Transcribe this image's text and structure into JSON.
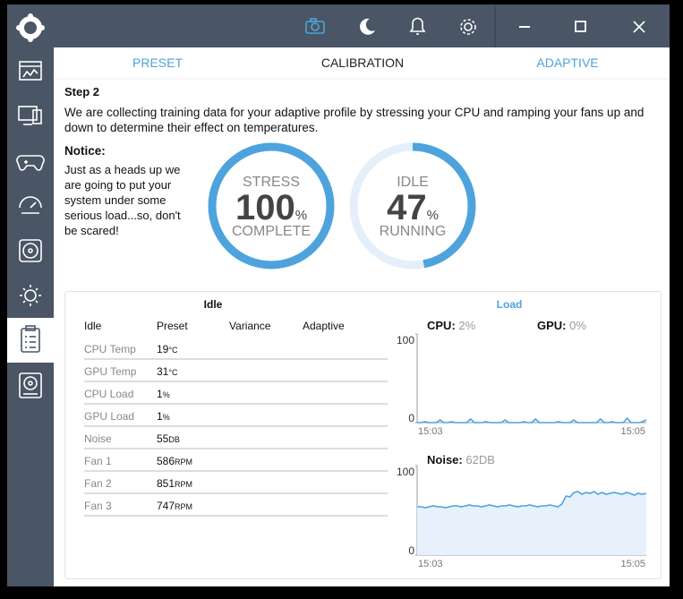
{
  "tabs": [
    "PRESET",
    "CALIBRATION",
    "ADAPTIVE"
  ],
  "active_tab": 1,
  "step": "Step 2",
  "description": "We are collecting training data for your adaptive profile by stressing your CPU and ramping your fans up and down to determine their effect on temperatures.",
  "notice": {
    "title": "Notice:",
    "text": "Just as a heads up we are going to put your system under some serious load...so, don't be scared!"
  },
  "gauges": [
    {
      "top": "STRESS",
      "value": 100,
      "unit": "%",
      "bottom": "COMPLETE"
    },
    {
      "top": "IDLE",
      "value": 47,
      "unit": "%",
      "bottom": "RUNNING"
    }
  ],
  "table": {
    "title": "Idle",
    "columns": [
      "Idle",
      "Preset",
      "Variance",
      "Adaptive"
    ],
    "rows": [
      {
        "name": "CPU Temp",
        "value": 19,
        "unit": "°C"
      },
      {
        "name": "GPU Temp",
        "value": 31,
        "unit": "°C"
      },
      {
        "name": "CPU Load",
        "value": 1,
        "unit": "%"
      },
      {
        "name": "GPU Load",
        "value": 1,
        "unit": "%"
      },
      {
        "name": "Noise",
        "value": 55,
        "unit": "DB"
      },
      {
        "name": "Fan 1",
        "value": 586,
        "unit": "RPM"
      },
      {
        "name": "Fan 2",
        "value": 851,
        "unit": "RPM"
      },
      {
        "name": "Fan 3",
        "value": 747,
        "unit": "RPM"
      }
    ]
  },
  "load": {
    "title": "Load",
    "cpu": {
      "label": "CPU:",
      "value": 2,
      "unit": "%"
    },
    "gpu": {
      "label": "GPU:",
      "value": 0,
      "unit": "%"
    },
    "chart": {
      "type": "line",
      "ylim": [
        0,
        100
      ],
      "yticks": [
        0,
        100
      ],
      "xlabels": [
        "15:03",
        "15:05"
      ],
      "color": "#4ea3dc",
      "values": [
        0,
        0,
        1,
        0,
        0,
        0,
        3,
        0,
        0,
        1,
        0,
        0,
        0,
        0,
        4,
        0,
        0,
        0,
        1,
        0,
        0,
        0,
        0,
        3,
        0,
        0,
        0,
        0,
        1,
        0,
        0,
        4,
        0,
        0,
        0,
        0,
        0,
        1,
        0,
        0,
        0,
        3,
        0,
        0,
        0,
        0,
        0,
        0,
        4,
        0,
        0,
        1,
        0,
        0,
        0,
        5,
        0,
        0,
        0,
        1,
        3
      ]
    },
    "noise": {
      "label": "Noise:",
      "value": 62,
      "unit": "DB",
      "chart": {
        "type": "area",
        "ylim": [
          0,
          100
        ],
        "yticks": [
          0,
          100
        ],
        "xlabels": [
          "15:03",
          "15:05"
        ],
        "color": "#4ea3dc",
        "values": [
          54,
          54,
          53,
          54,
          55,
          54,
          54,
          53,
          54,
          55,
          55,
          54,
          55,
          56,
          55,
          55,
          54,
          55,
          56,
          55,
          54,
          55,
          55,
          56,
          55,
          54,
          55,
          55,
          56,
          55,
          54,
          55,
          55,
          56,
          55,
          54,
          57,
          66,
          65,
          70,
          71,
          68,
          70,
          69,
          71,
          68,
          70,
          68,
          69,
          70,
          69,
          68,
          70,
          69,
          67,
          69,
          68,
          69
        ]
      }
    }
  }
}
